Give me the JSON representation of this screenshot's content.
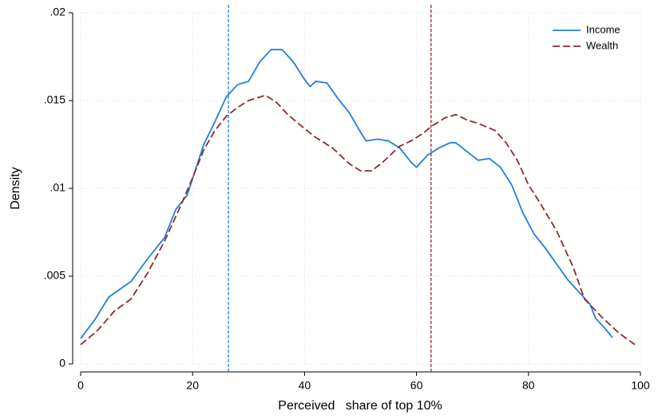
{
  "chart_data": {
    "type": "line",
    "x_label": "Perceived   share of top 10%",
    "y_label": "Density",
    "xlim": [
      0,
      100
    ],
    "ylim": [
      0,
      0.02
    ],
    "xticks": [
      0,
      20,
      40,
      60,
      80,
      100
    ],
    "yticks": [
      0,
      {
        "value": 0.005,
        "label": ".005"
      },
      {
        "value": 0.01,
        "label": ".01"
      },
      {
        "value": 0.015,
        "label": ".015"
      },
      {
        "value": 0.02,
        "label": ".02"
      }
    ],
    "grid": true,
    "legend": "top-right",
    "reference_lines": [
      {
        "x": 26.4,
        "color": "#1f7fd8"
      },
      {
        "x": 62.6,
        "color": "#8b2a2a"
      }
    ],
    "series": [
      {
        "name": "Income",
        "color": "#1f7fd8",
        "dash": "solid",
        "x": [
          0,
          2.5,
          5,
          9,
          12,
          15,
          17,
          19,
          22,
          24,
          26,
          28,
          30,
          32,
          34,
          36,
          38,
          40,
          41,
          42,
          44,
          46,
          48,
          50,
          51,
          53,
          55,
          57,
          59,
          60,
          62,
          64,
          66,
          67,
          69,
          71,
          73,
          75,
          77,
          79,
          81,
          83,
          85,
          87,
          89,
          91,
          92,
          94,
          95
        ],
        "values": [
          0.00145,
          0.0025,
          0.0038,
          0.0047,
          0.006,
          0.0072,
          0.0088,
          0.0096,
          0.0125,
          0.0138,
          0.0152,
          0.0159,
          0.0161,
          0.0172,
          0.0179,
          0.0179,
          0.0172,
          0.0162,
          0.0158,
          0.0161,
          0.016,
          0.0151,
          0.0143,
          0.0132,
          0.0127,
          0.0128,
          0.0127,
          0.0123,
          0.0115,
          0.0112,
          0.0119,
          0.0123,
          0.0126,
          0.0126,
          0.0121,
          0.0116,
          0.0117,
          0.0112,
          0.0102,
          0.0086,
          0.0074,
          0.0066,
          0.0057,
          0.0048,
          0.0041,
          0.0034,
          0.0026,
          0.0019,
          0.0015
        ]
      },
      {
        "name": "Wealth",
        "color": "#8b2a2a",
        "dash": "dashed",
        "x": [
          0,
          3,
          6,
          9,
          12,
          15,
          18,
          20,
          22,
          24,
          26,
          28,
          30,
          33,
          35,
          37,
          40,
          42,
          45,
          48,
          50,
          52,
          54,
          57,
          59,
          61,
          63,
          65,
          67,
          69,
          71,
          74,
          76,
          78,
          80,
          82,
          85,
          88,
          90,
          93,
          96,
          99
        ],
        "values": [
          0.0011,
          0.0019,
          0.003,
          0.0037,
          0.0052,
          0.007,
          0.0091,
          0.0106,
          0.0122,
          0.0133,
          0.0141,
          0.0146,
          0.015,
          0.0153,
          0.0149,
          0.0142,
          0.0134,
          0.0129,
          0.0123,
          0.0114,
          0.011,
          0.011,
          0.0115,
          0.0124,
          0.0127,
          0.0131,
          0.0136,
          0.014,
          0.0142,
          0.0139,
          0.0137,
          0.0133,
          0.0126,
          0.0116,
          0.0102,
          0.0092,
          0.0076,
          0.0055,
          0.0037,
          0.0027,
          0.0018,
          0.0011
        ]
      }
    ]
  }
}
